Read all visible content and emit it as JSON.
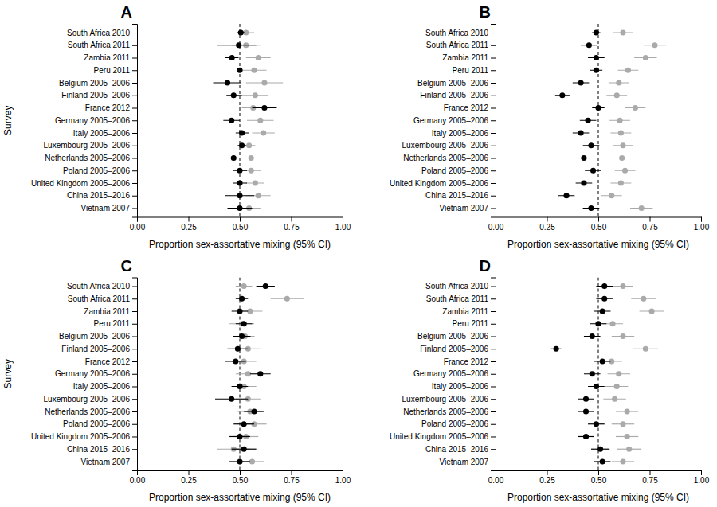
{
  "chart_data": [
    {
      "type": "dot",
      "title": "A",
      "orientation": "horizontal",
      "grid": false,
      "categories": [
        "South Africa 2010",
        "South Africa 2011",
        "Zambia 2011",
        "Peru 2011",
        "Belgium 2005–2006",
        "Finland 2005–2006",
        "France 2012",
        "Germany 2005–2006",
        "Italy 2005–2006",
        "Luxembourg 2005–2006",
        "Netherlands 2005–2006",
        "Poland 2005–2006",
        "United Kingdom 2005–2006",
        "China 2015–2016",
        "Vietnam 2007"
      ],
      "xlabel": "Proportion sex-assortative mixing (95% CI)",
      "ylabel": "Survey",
      "xlim": [
        0.0,
        1.0
      ],
      "xticks": [
        {
          "value": 0.0,
          "label": "0.00"
        },
        0.25,
        {
          "value": 0.5,
          "label": "0.50"
        },
        0.75,
        {
          "value": 1.0,
          "label": "1.00"
        }
      ],
      "vline": 0.5,
      "series": [
        {
          "color": "#000000",
          "marker": "circle",
          "values": [
            0.505,
            0.495,
            0.462,
            0.5,
            0.44,
            0.47,
            0.62,
            0.46,
            0.51,
            0.51,
            0.47,
            0.5,
            0.5,
            0.5,
            0.5
          ],
          "ci_lo": [
            0.485,
            0.39,
            0.43,
            0.49,
            0.37,
            0.435,
            0.56,
            0.42,
            0.48,
            0.49,
            0.435,
            0.465,
            0.465,
            0.43,
            0.44
          ],
          "ci_hi": [
            0.525,
            0.58,
            0.494,
            0.51,
            0.505,
            0.51,
            0.68,
            0.5,
            0.545,
            0.53,
            0.51,
            0.535,
            0.535,
            0.57,
            0.56
          ]
        },
        {
          "color": "#aaaaaa",
          "marker": "circle",
          "values": [
            0.53,
            0.53,
            0.59,
            0.57,
            0.62,
            0.575,
            0.565,
            0.6,
            0.615,
            0.545,
            0.555,
            0.555,
            0.575,
            0.59,
            0.545
          ],
          "ci_lo": [
            0.49,
            0.46,
            0.53,
            0.51,
            0.53,
            0.51,
            0.51,
            0.535,
            0.56,
            0.515,
            0.505,
            0.505,
            0.53,
            0.53,
            0.49
          ],
          "ci_hi": [
            0.57,
            0.6,
            0.65,
            0.63,
            0.71,
            0.64,
            0.62,
            0.665,
            0.67,
            0.575,
            0.605,
            0.605,
            0.62,
            0.65,
            0.6
          ]
        }
      ]
    },
    {
      "type": "dot",
      "title": "B",
      "orientation": "horizontal",
      "grid": false,
      "categories": [
        "South Africa 2010",
        "South Africa 2011",
        "Zambia 2011",
        "Peru 2011",
        "Belgium 2005–2006",
        "Finland 2005–2006",
        "France 2012",
        "Germany 2005–2006",
        "Italy 2005–2006",
        "Luxembourg 2005–2006",
        "Netherlands 2005–2006",
        "Poland 2005–2006",
        "United Kingdom 2005–2006",
        "China 2015–2016",
        "Vietnam 2007"
      ],
      "xlabel": "Proportion sex-assortative mixing (95% CI)",
      "xlim": [
        0.0,
        1.0
      ],
      "xticks": [
        {
          "value": 0.0,
          "label": "0.00"
        },
        0.25,
        {
          "value": 0.5,
          "label": "0.50"
        },
        0.75,
        {
          "value": 1.0,
          "label": "1.00"
        }
      ],
      "vline": 0.5,
      "series": [
        {
          "color": "#000000",
          "marker": "circle",
          "values": [
            0.49,
            0.455,
            0.49,
            0.49,
            0.415,
            0.325,
            0.5,
            0.45,
            0.415,
            0.465,
            0.43,
            0.475,
            0.43,
            0.345,
            0.465
          ],
          "ci_lo": [
            0.47,
            0.415,
            0.45,
            0.46,
            0.375,
            0.29,
            0.47,
            0.41,
            0.375,
            0.425,
            0.39,
            0.435,
            0.39,
            0.305,
            0.425
          ],
          "ci_hi": [
            0.51,
            0.495,
            0.53,
            0.52,
            0.455,
            0.36,
            0.53,
            0.49,
            0.455,
            0.505,
            0.47,
            0.515,
            0.47,
            0.385,
            0.505
          ]
        },
        {
          "color": "#aaaaaa",
          "marker": "circle",
          "values": [
            0.62,
            0.775,
            0.73,
            0.645,
            0.6,
            0.59,
            0.68,
            0.605,
            0.61,
            0.62,
            0.615,
            0.63,
            0.61,
            0.565,
            0.71
          ],
          "ci_lo": [
            0.57,
            0.72,
            0.675,
            0.595,
            0.55,
            0.54,
            0.63,
            0.555,
            0.56,
            0.57,
            0.565,
            0.58,
            0.56,
            0.515,
            0.655
          ],
          "ci_hi": [
            0.67,
            0.83,
            0.785,
            0.695,
            0.65,
            0.64,
            0.73,
            0.655,
            0.66,
            0.67,
            0.665,
            0.68,
            0.66,
            0.615,
            0.765
          ]
        }
      ]
    },
    {
      "type": "dot",
      "title": "C",
      "orientation": "horizontal",
      "grid": false,
      "categories": [
        "South Africa 2010",
        "South Africa 2011",
        "Zambia 2011",
        "Peru 2011",
        "Belgium 2005–2006",
        "Finland 2005–2006",
        "France 2012",
        "Germany 2005–2006",
        "Italy 2005–2006",
        "Luxembourg 2005–2006",
        "Netherlands 2005–2006",
        "Poland 2005–2006",
        "United Kingdom 2005–2006",
        "China 2015–2016",
        "Vietnam 2007"
      ],
      "xlabel": "Proportion sex-assortative mixing (95% CI)",
      "ylabel": "Survey",
      "xlim": [
        0.0,
        1.0
      ],
      "xticks": [
        {
          "value": 0.0,
          "label": "0.00"
        },
        0.25,
        {
          "value": 0.5,
          "label": "0.50"
        },
        0.75,
        {
          "value": 1.0,
          "label": "1.00"
        }
      ],
      "vline": 0.5,
      "series": [
        {
          "color": "#000000",
          "marker": "circle",
          "values": [
            0.625,
            0.51,
            0.5,
            0.52,
            0.51,
            0.49,
            0.48,
            0.6,
            0.5,
            0.46,
            0.57,
            0.52,
            0.5,
            0.52,
            0.5
          ],
          "ci_lo": [
            0.58,
            0.48,
            0.46,
            0.48,
            0.468,
            0.44,
            0.43,
            0.55,
            0.46,
            0.38,
            0.52,
            0.47,
            0.45,
            0.46,
            0.45
          ],
          "ci_hi": [
            0.67,
            0.54,
            0.54,
            0.56,
            0.552,
            0.54,
            0.53,
            0.65,
            0.54,
            0.54,
            0.62,
            0.57,
            0.55,
            0.58,
            0.55
          ]
        },
        {
          "color": "#aaaaaa",
          "marker": "circle",
          "values": [
            0.52,
            0.73,
            0.55,
            0.51,
            0.525,
            0.54,
            0.52,
            0.54,
            0.52,
            0.54,
            0.55,
            0.57,
            0.53,
            0.47,
            0.56
          ],
          "ci_lo": [
            0.48,
            0.65,
            0.49,
            0.45,
            0.478,
            0.48,
            0.46,
            0.48,
            0.46,
            0.48,
            0.49,
            0.51,
            0.47,
            0.39,
            0.5
          ],
          "ci_hi": [
            0.56,
            0.81,
            0.61,
            0.57,
            0.572,
            0.6,
            0.58,
            0.6,
            0.58,
            0.6,
            0.61,
            0.63,
            0.59,
            0.55,
            0.62
          ]
        }
      ]
    },
    {
      "type": "dot",
      "title": "D",
      "orientation": "horizontal",
      "grid": false,
      "categories": [
        "South Africa 2010",
        "South Africa 2011",
        "Zambia 2011",
        "Peru 2011",
        "Belgium 2005–2006",
        "Finland 2005–2006",
        "France 2012",
        "Germany 2005–2006",
        "Italy 2005–2006",
        "Luxembourg 2005–2006",
        "Netherlands 2005–2006",
        "Poland 2005–2006",
        "United Kingdom 2005–2006",
        "China 2015–2016",
        "Vietnam 2007"
      ],
      "xlabel": "Proportion sex-assortative mixing (95% CI)",
      "xlim": [
        0.0,
        1.0
      ],
      "xticks": [
        {
          "value": 0.0,
          "label": "0.00"
        },
        0.25,
        {
          "value": 0.5,
          "label": "0.50"
        },
        0.75,
        {
          "value": 1.0,
          "label": "1.00"
        }
      ],
      "vline": 0.5,
      "series": [
        {
          "color": "#000000",
          "marker": "circle",
          "values": [
            0.53,
            0.53,
            0.52,
            0.5,
            0.47,
            0.295,
            0.52,
            0.47,
            0.49,
            0.44,
            0.44,
            0.49,
            0.44,
            0.51,
            0.52
          ],
          "ci_lo": [
            0.49,
            0.49,
            0.48,
            0.46,
            0.43,
            0.27,
            0.48,
            0.43,
            0.45,
            0.4,
            0.4,
            0.45,
            0.4,
            0.465,
            0.48
          ],
          "ci_hi": [
            0.57,
            0.57,
            0.56,
            0.54,
            0.51,
            0.32,
            0.56,
            0.51,
            0.53,
            0.48,
            0.48,
            0.53,
            0.48,
            0.555,
            0.56
          ]
        },
        {
          "color": "#aaaaaa",
          "marker": "circle",
          "values": [
            0.62,
            0.72,
            0.76,
            0.57,
            0.62,
            0.73,
            0.565,
            0.6,
            0.59,
            0.58,
            0.64,
            0.62,
            0.64,
            0.65,
            0.62
          ],
          "ci_lo": [
            0.57,
            0.66,
            0.7,
            0.52,
            0.565,
            0.67,
            0.515,
            0.545,
            0.535,
            0.525,
            0.585,
            0.565,
            0.585,
            0.59,
            0.565
          ],
          "ci_hi": [
            0.67,
            0.78,
            0.82,
            0.62,
            0.675,
            0.79,
            0.615,
            0.655,
            0.645,
            0.635,
            0.695,
            0.675,
            0.695,
            0.71,
            0.675
          ]
        }
      ]
    }
  ]
}
